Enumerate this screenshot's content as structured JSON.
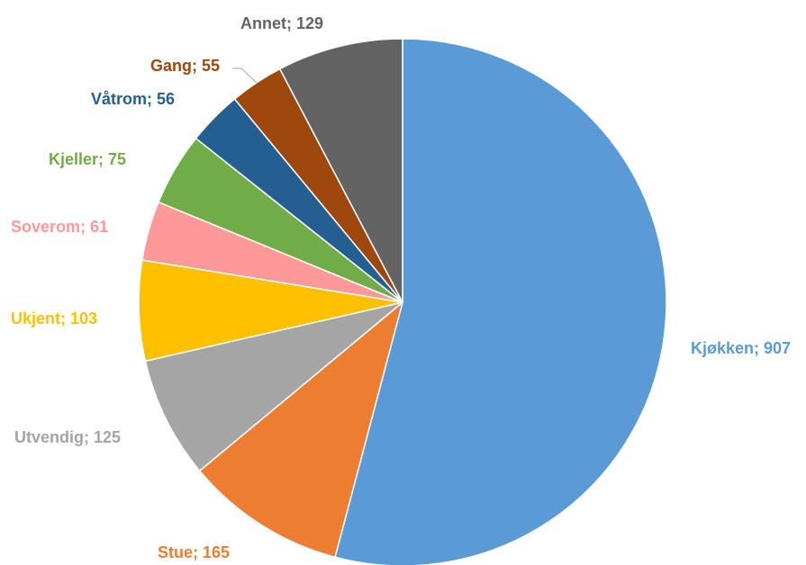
{
  "chart_data": {
    "type": "pie",
    "title": "",
    "legend": "none",
    "label_format": "{category}; {value}",
    "start_angle_deg": 0,
    "direction": "clockwise",
    "slices": [
      {
        "category": "Kjøkken",
        "value": 907,
        "color": "#5B9BD5"
      },
      {
        "category": "Stue",
        "value": 165,
        "color": "#ED7D31"
      },
      {
        "category": "Utvendig",
        "value": 125,
        "color": "#A5A5A5"
      },
      {
        "category": "Ukjent",
        "value": 103,
        "color": "#FFC000"
      },
      {
        "category": "Soverom",
        "value": 61,
        "color": "#FF9999"
      },
      {
        "category": "Kjeller",
        "value": 75,
        "color": "#70AD47"
      },
      {
        "category": "Våtrom",
        "value": 56,
        "color": "#255E91"
      },
      {
        "category": "Gang",
        "value": 55,
        "color": "#9E480E"
      },
      {
        "category": "Annet",
        "value": 129,
        "color": "#636363"
      }
    ]
  }
}
